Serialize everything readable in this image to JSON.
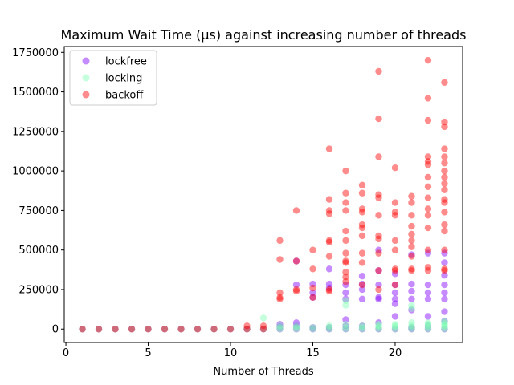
{
  "chart_data": {
    "type": "scatter",
    "title": "Maximum Wait Time (µs) against increasing number of threads",
    "xlabel": "Number of Threads",
    "ylabel": "",
    "xlim": [
      -0.1,
      24.1
    ],
    "ylim": [
      -85000,
      1787000
    ],
    "xticks": [
      0,
      5,
      10,
      15,
      20
    ],
    "yticks": [
      0,
      250000,
      500000,
      750000,
      1000000,
      1250000,
      1500000,
      1750000
    ],
    "grid": false,
    "legend_position": "top-left",
    "series": [
      {
        "name": "lockfree",
        "color": "#8000ff",
        "points": [
          [
            1,
            0
          ],
          [
            2,
            0
          ],
          [
            3,
            0
          ],
          [
            4,
            0
          ],
          [
            5,
            0
          ],
          [
            6,
            0
          ],
          [
            7,
            0
          ],
          [
            8,
            0
          ],
          [
            9,
            0
          ],
          [
            10,
            0
          ],
          [
            11,
            0
          ],
          [
            12,
            0
          ],
          [
            13,
            0
          ],
          [
            13,
            15000
          ],
          [
            13,
            30000
          ],
          [
            14,
            0
          ],
          [
            14,
            20000
          ],
          [
            14,
            40000
          ],
          [
            14,
            280000
          ],
          [
            14,
            430000
          ],
          [
            15,
            0
          ],
          [
            15,
            10000
          ],
          [
            15,
            200000
          ],
          [
            15,
            230000
          ],
          [
            15,
            285000
          ],
          [
            16,
            0
          ],
          [
            16,
            10000
          ],
          [
            16,
            260000
          ],
          [
            16,
            285000
          ],
          [
            16,
            380000
          ],
          [
            17,
            0
          ],
          [
            17,
            20000
          ],
          [
            17,
            60000
          ],
          [
            17,
            190000
          ],
          [
            17,
            230000
          ],
          [
            17,
            280000
          ],
          [
            18,
            0
          ],
          [
            18,
            20000
          ],
          [
            18,
            190000
          ],
          [
            18,
            250000
          ],
          [
            18,
            285000
          ],
          [
            18,
            335000
          ],
          [
            19,
            0
          ],
          [
            19,
            40000
          ],
          [
            19,
            190000
          ],
          [
            19,
            200000
          ],
          [
            19,
            280000
          ],
          [
            19,
            370000
          ],
          [
            19,
            500000
          ],
          [
            20,
            0
          ],
          [
            20,
            80000
          ],
          [
            20,
            160000
          ],
          [
            20,
            190000
          ],
          [
            20,
            230000
          ],
          [
            20,
            280000
          ],
          [
            20,
            350000
          ],
          [
            21,
            0
          ],
          [
            21,
            10000
          ],
          [
            21,
            120000
          ],
          [
            21,
            190000
          ],
          [
            21,
            240000
          ],
          [
            21,
            285000
          ],
          [
            21,
            470000
          ],
          [
            22,
            0
          ],
          [
            22,
            20000
          ],
          [
            22,
            80000
          ],
          [
            22,
            190000
          ],
          [
            22,
            230000
          ],
          [
            22,
            280000
          ],
          [
            22,
            480000
          ],
          [
            23,
            0
          ],
          [
            23,
            50000
          ],
          [
            23,
            110000
          ],
          [
            23,
            190000
          ],
          [
            23,
            230000
          ],
          [
            23,
            280000
          ],
          [
            23,
            340000
          ],
          [
            23,
            420000
          ],
          [
            23,
            480000
          ]
        ]
      },
      {
        "name": "locking",
        "color": "#80ffb4",
        "points": [
          [
            1,
            0
          ],
          [
            2,
            0
          ],
          [
            3,
            0
          ],
          [
            4,
            0
          ],
          [
            5,
            0
          ],
          [
            6,
            0
          ],
          [
            7,
            0
          ],
          [
            8,
            0
          ],
          [
            9,
            0
          ],
          [
            10,
            0
          ],
          [
            11,
            0
          ],
          [
            12,
            0
          ],
          [
            12,
            70000
          ],
          [
            13,
            0
          ],
          [
            13,
            10000
          ],
          [
            13,
            20000
          ],
          [
            14,
            0
          ],
          [
            14,
            10000
          ],
          [
            14,
            20000
          ],
          [
            15,
            0
          ],
          [
            15,
            10000
          ],
          [
            16,
            0
          ],
          [
            16,
            10000
          ],
          [
            16,
            20000
          ],
          [
            17,
            0
          ],
          [
            17,
            10000
          ],
          [
            17,
            30000
          ],
          [
            17,
            150000
          ],
          [
            17,
            180000
          ],
          [
            18,
            0
          ],
          [
            18,
            10000
          ],
          [
            18,
            20000
          ],
          [
            19,
            0
          ],
          [
            19,
            10000
          ],
          [
            19,
            20000
          ],
          [
            19,
            30000
          ],
          [
            20,
            0
          ],
          [
            20,
            10000
          ],
          [
            20,
            20000
          ],
          [
            20,
            30000
          ],
          [
            21,
            0
          ],
          [
            21,
            10000
          ],
          [
            21,
            20000
          ],
          [
            21,
            40000
          ],
          [
            21,
            130000
          ],
          [
            21,
            150000
          ],
          [
            22,
            0
          ],
          [
            22,
            10000
          ],
          [
            22,
            20000
          ],
          [
            22,
            30000
          ],
          [
            22,
            40000
          ],
          [
            23,
            0
          ],
          [
            23,
            10000
          ],
          [
            23,
            20000
          ],
          [
            23,
            30000
          ],
          [
            23,
            40000
          ],
          [
            23,
            50000
          ]
        ]
      },
      {
        "name": "backoff",
        "color": "#ff0000",
        "points": [
          [
            1,
            0
          ],
          [
            2,
            0
          ],
          [
            3,
            0
          ],
          [
            4,
            0
          ],
          [
            5,
            0
          ],
          [
            6,
            0
          ],
          [
            7,
            0
          ],
          [
            8,
            0
          ],
          [
            9,
            0
          ],
          [
            10,
            0
          ],
          [
            11,
            0
          ],
          [
            11,
            20000
          ],
          [
            12,
            0
          ],
          [
            12,
            20000
          ],
          [
            13,
            190000
          ],
          [
            13,
            200000
          ],
          [
            13,
            230000
          ],
          [
            13,
            440000
          ],
          [
            13,
            560000
          ],
          [
            14,
            240000
          ],
          [
            14,
            250000
          ],
          [
            14,
            430000
          ],
          [
            14,
            750000
          ],
          [
            15,
            200000
          ],
          [
            15,
            260000
          ],
          [
            15,
            380000
          ],
          [
            15,
            500000
          ],
          [
            16,
            240000
          ],
          [
            16,
            250000
          ],
          [
            16,
            460000
          ],
          [
            16,
            550000
          ],
          [
            16,
            560000
          ],
          [
            16,
            730000
          ],
          [
            16,
            750000
          ],
          [
            16,
            820000
          ],
          [
            16,
            1140000
          ],
          [
            17,
            300000
          ],
          [
            17,
            330000
          ],
          [
            17,
            360000
          ],
          [
            17,
            420000
          ],
          [
            17,
            430000
          ],
          [
            17,
            480000
          ],
          [
            17,
            560000
          ],
          [
            17,
            620000
          ],
          [
            17,
            750000
          ],
          [
            17,
            800000
          ],
          [
            17,
            860000
          ],
          [
            17,
            1000000
          ],
          [
            18,
            280000
          ],
          [
            18,
            420000
          ],
          [
            18,
            480000
          ],
          [
            18,
            590000
          ],
          [
            18,
            640000
          ],
          [
            18,
            660000
          ],
          [
            18,
            740000
          ],
          [
            18,
            760000
          ],
          [
            18,
            860000
          ],
          [
            18,
            910000
          ],
          [
            19,
            250000
          ],
          [
            19,
            370000
          ],
          [
            19,
            480000
          ],
          [
            19,
            570000
          ],
          [
            19,
            590000
          ],
          [
            19,
            720000
          ],
          [
            19,
            830000
          ],
          [
            19,
            850000
          ],
          [
            19,
            1090000
          ],
          [
            19,
            1330000
          ],
          [
            19,
            1630000
          ],
          [
            20,
            280000
          ],
          [
            20,
            370000
          ],
          [
            20,
            380000
          ],
          [
            20,
            500000
          ],
          [
            20,
            560000
          ],
          [
            20,
            720000
          ],
          [
            20,
            740000
          ],
          [
            20,
            800000
          ],
          [
            20,
            1020000
          ],
          [
            21,
            370000
          ],
          [
            21,
            380000
          ],
          [
            21,
            460000
          ],
          [
            21,
            520000
          ],
          [
            21,
            560000
          ],
          [
            21,
            600000
          ],
          [
            21,
            650000
          ],
          [
            21,
            720000
          ],
          [
            21,
            800000
          ],
          [
            21,
            840000
          ],
          [
            22,
            370000
          ],
          [
            22,
            390000
          ],
          [
            22,
            500000
          ],
          [
            22,
            640000
          ],
          [
            22,
            720000
          ],
          [
            22,
            760000
          ],
          [
            22,
            830000
          ],
          [
            22,
            900000
          ],
          [
            22,
            960000
          ],
          [
            22,
            1040000
          ],
          [
            22,
            1060000
          ],
          [
            22,
            1090000
          ],
          [
            22,
            1320000
          ],
          [
            22,
            1460000
          ],
          [
            22,
            1700000
          ],
          [
            23,
            370000
          ],
          [
            23,
            380000
          ],
          [
            23,
            500000
          ],
          [
            23,
            620000
          ],
          [
            23,
            660000
          ],
          [
            23,
            740000
          ],
          [
            23,
            800000
          ],
          [
            23,
            820000
          ],
          [
            23,
            880000
          ],
          [
            23,
            920000
          ],
          [
            23,
            960000
          ],
          [
            23,
            1000000
          ],
          [
            23,
            1050000
          ],
          [
            23,
            1090000
          ],
          [
            23,
            1140000
          ],
          [
            23,
            1280000
          ],
          [
            23,
            1310000
          ],
          [
            23,
            1560000
          ]
        ]
      }
    ]
  }
}
